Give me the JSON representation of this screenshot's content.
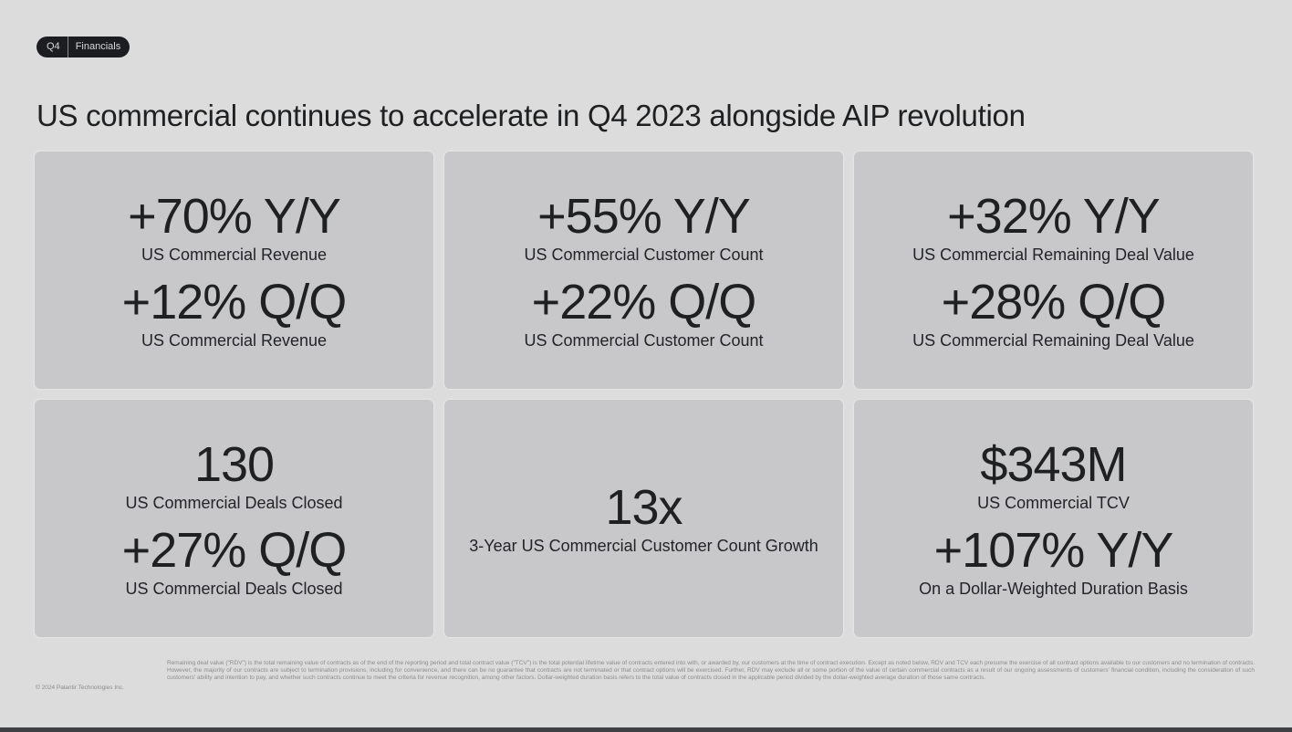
{
  "header": {
    "tag_period": "Q4",
    "tag_section": "Financials",
    "title": "US commercial continues to accelerate in Q4 2023 alongside AIP revolution"
  },
  "cards": [
    {
      "metrics": [
        {
          "value": "+70% Y/Y",
          "label": "US Commercial Revenue"
        },
        {
          "value": "+12% Q/Q",
          "label": "US Commercial Revenue"
        }
      ]
    },
    {
      "metrics": [
        {
          "value": "+55% Y/Y",
          "label": "US Commercial Customer Count"
        },
        {
          "value": "+22% Q/Q",
          "label": "US Commercial Customer Count"
        }
      ]
    },
    {
      "metrics": [
        {
          "value": "+32% Y/Y",
          "label": "US Commercial Remaining Deal Value"
        },
        {
          "value": "+28% Q/Q",
          "label": "US Commercial Remaining Deal Value"
        }
      ]
    },
    {
      "metrics": [
        {
          "value": "130",
          "label": "US Commercial Deals Closed"
        },
        {
          "value": "+27% Q/Q",
          "label": "US Commercial Deals Closed"
        }
      ]
    },
    {
      "metrics": [
        {
          "value": "13x",
          "label": "3-Year US Commercial Customer Count Growth"
        }
      ]
    },
    {
      "metrics": [
        {
          "value": "$343M",
          "label": "US Commercial TCV"
        },
        {
          "value": "+107% Y/Y",
          "label": "On a Dollar-Weighted Duration Basis"
        }
      ]
    }
  ],
  "footer": {
    "copyright": "© 2024 Palantir Technologies Inc.",
    "disclaimer": "Remaining deal value (\"RDV\") is the total remaining value of contracts as of the end of the reporting period and total contract value (\"TCV\") is the total potential lifetime value of contracts entered into with, or awarded by, our customers at the time of contract execution. Except as noted below, RDV and TCV each presume the exercise of all contract options available to our customers and no termination of contracts. However, the majority of our contracts are subject to termination provisions, including for convenience, and there can be no guarantee that contracts are not terminated or that contract options will be exercised. Further, RDV may exclude all or some portion of the value of certain commercial contracts as a result of our ongoing assessments of customers' financial condition, including the consideration of such customers' ability and intention to pay, and whether such contracts continue to meet the criteria for revenue recognition, among other factors. Dollar-weighted duration basis refers to the total value of contracts closed in the applicable period divided by the dollar-weighted average duration of those same contracts."
  }
}
